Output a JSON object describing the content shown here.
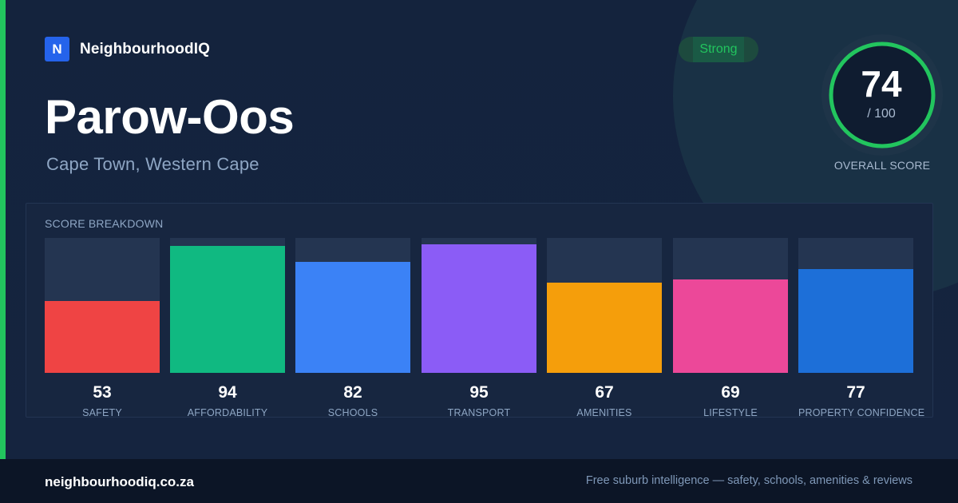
{
  "brand": {
    "logo_letter": "N",
    "name": "NeighbourhoodIQ"
  },
  "suburb": {
    "name": "Parow-Oos",
    "location": "Cape Town, Western Cape"
  },
  "status_badge": {
    "label": "Strong",
    "color": "#22c55e"
  },
  "overall_score": {
    "value": "74",
    "max_label": "/ 100",
    "caption": "OVERALL SCORE",
    "fraction": 0.74,
    "ring_color": "#22c55e"
  },
  "breakdown": {
    "title": "SCORE BREAKDOWN",
    "scores": [
      {
        "label": "SAFETY",
        "value": "53",
        "color": "#ef4444"
      },
      {
        "label": "AFFORDABILITY",
        "value": "94",
        "color": "#10b981"
      },
      {
        "label": "SCHOOLS",
        "value": "82",
        "color": "#3b82f6"
      },
      {
        "label": "TRANSPORT",
        "value": "95",
        "color": "#8b5cf6"
      },
      {
        "label": "AMENITIES",
        "value": "67",
        "color": "#f59e0b"
      },
      {
        "label": "LIFESTYLE",
        "value": "69",
        "color": "#ec4899"
      },
      {
        "label": "PROPERTY CONFIDENCE",
        "value": "77",
        "color": "#1d6fd8"
      }
    ]
  },
  "footer": {
    "domain": "neighbourhoodiq.co.za",
    "tagline": "Free suburb intelligence — safety, schools, amenities & reviews"
  }
}
